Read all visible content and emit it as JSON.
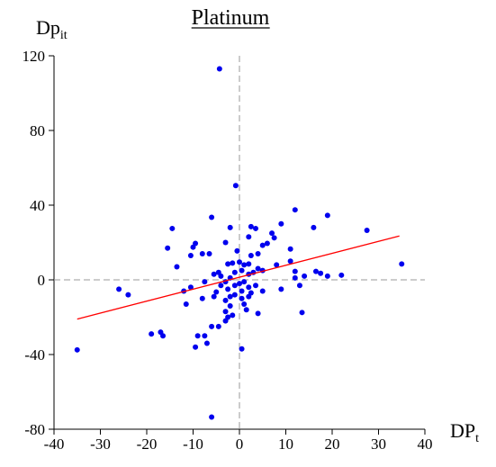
{
  "chart_data": {
    "type": "scatter",
    "title": "Platinum",
    "xlabel": {
      "main": "DP",
      "sub": "t"
    },
    "ylabel": {
      "main": "Dp",
      "sub": "it"
    },
    "xlim": [
      -40,
      40
    ],
    "ylim": [
      -80,
      120
    ],
    "xticks": [
      -40,
      -30,
      -20,
      -10,
      0,
      10,
      20,
      30,
      40
    ],
    "yticks": [
      -80,
      -40,
      0,
      40,
      80,
      120
    ],
    "color": "#0000ee",
    "x": [
      -4.3,
      -0.8,
      -6,
      12,
      19,
      9,
      -2,
      2.5,
      3.5,
      7,
      7.5,
      -14.5,
      -9.5,
      -10,
      -15.5,
      -3,
      -8,
      -10.5,
      -6.5,
      2,
      6,
      5,
      16,
      27.5,
      11,
      -0.5,
      2.5,
      4,
      -13.5,
      -2.5,
      -1.5,
      0,
      1,
      2,
      -4.5,
      -5.5,
      -4,
      -1,
      0.5,
      2,
      3,
      4,
      5,
      8,
      11,
      12,
      16.5,
      17.5,
      19,
      22,
      35,
      12,
      14,
      9,
      13,
      13.5,
      4,
      -12,
      -10.5,
      -8,
      -7.5,
      -11.5,
      -5,
      -4,
      -3,
      -2,
      -1,
      0,
      0.5,
      1,
      2,
      2.5,
      3.5,
      5,
      -1,
      0.5,
      2,
      -2,
      -3,
      -2,
      1,
      1.5,
      -3,
      -2.5,
      -4.5,
      -6,
      -1.5,
      -3,
      -7.5,
      -9,
      -9.5,
      -7,
      -17,
      -16.5,
      -19,
      -26,
      -24,
      -35,
      0.5,
      -6,
      -2.5,
      -5.5
    ],
    "y": [
      113,
      50.5,
      33.5,
      37.5,
      34.5,
      30,
      28,
      28.5,
      27.5,
      25,
      22.5,
      27.5,
      19.5,
      17.5,
      17,
      20,
      14,
      13,
      14,
      23,
      19.5,
      18.5,
      28,
      26.5,
      16.5,
      15.5,
      13,
      14,
      7,
      8.5,
      9,
      9.5,
      8,
      8.5,
      4,
      3,
      2,
      4,
      5,
      3,
      4,
      6,
      5,
      8,
      10,
      4.5,
      4.5,
      3.5,
      2,
      2.5,
      8.5,
      1,
      2,
      -5,
      -3,
      -17.5,
      -18,
      -6,
      -4,
      -10,
      -1,
      -13,
      -6.5,
      -3,
      -1,
      1,
      -3,
      -2,
      -6,
      -1,
      -4,
      -7,
      -3,
      -6,
      -8,
      -10,
      -9,
      -9,
      -11,
      -14,
      -13,
      -16,
      -17,
      -20,
      -25,
      -25,
      -19,
      -22,
      -30,
      -30,
      -36,
      -34,
      -28,
      -30,
      -29,
      -5,
      -8,
      -37.5,
      -37,
      -73.5,
      -5,
      -9
    ],
    "fit_line": {
      "color": "#ff0000",
      "x": [
        -35,
        34.5
      ],
      "y": [
        -21,
        23.5
      ]
    },
    "zero_lines": true
  }
}
